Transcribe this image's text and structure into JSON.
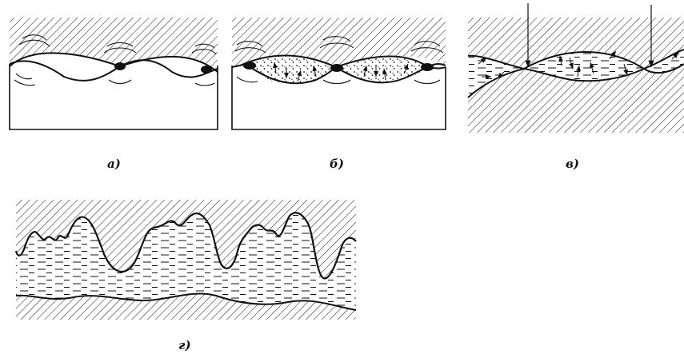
{
  "figure": {
    "panels": [
      {
        "id": "a",
        "label": "а)"
      },
      {
        "id": "b",
        "label": "б)"
      },
      {
        "id": "v",
        "label": "в)"
      },
      {
        "id": "g",
        "label": "г)"
      }
    ]
  },
  "colors": {
    "ink": "#111111",
    "background": "#ffffff"
  }
}
